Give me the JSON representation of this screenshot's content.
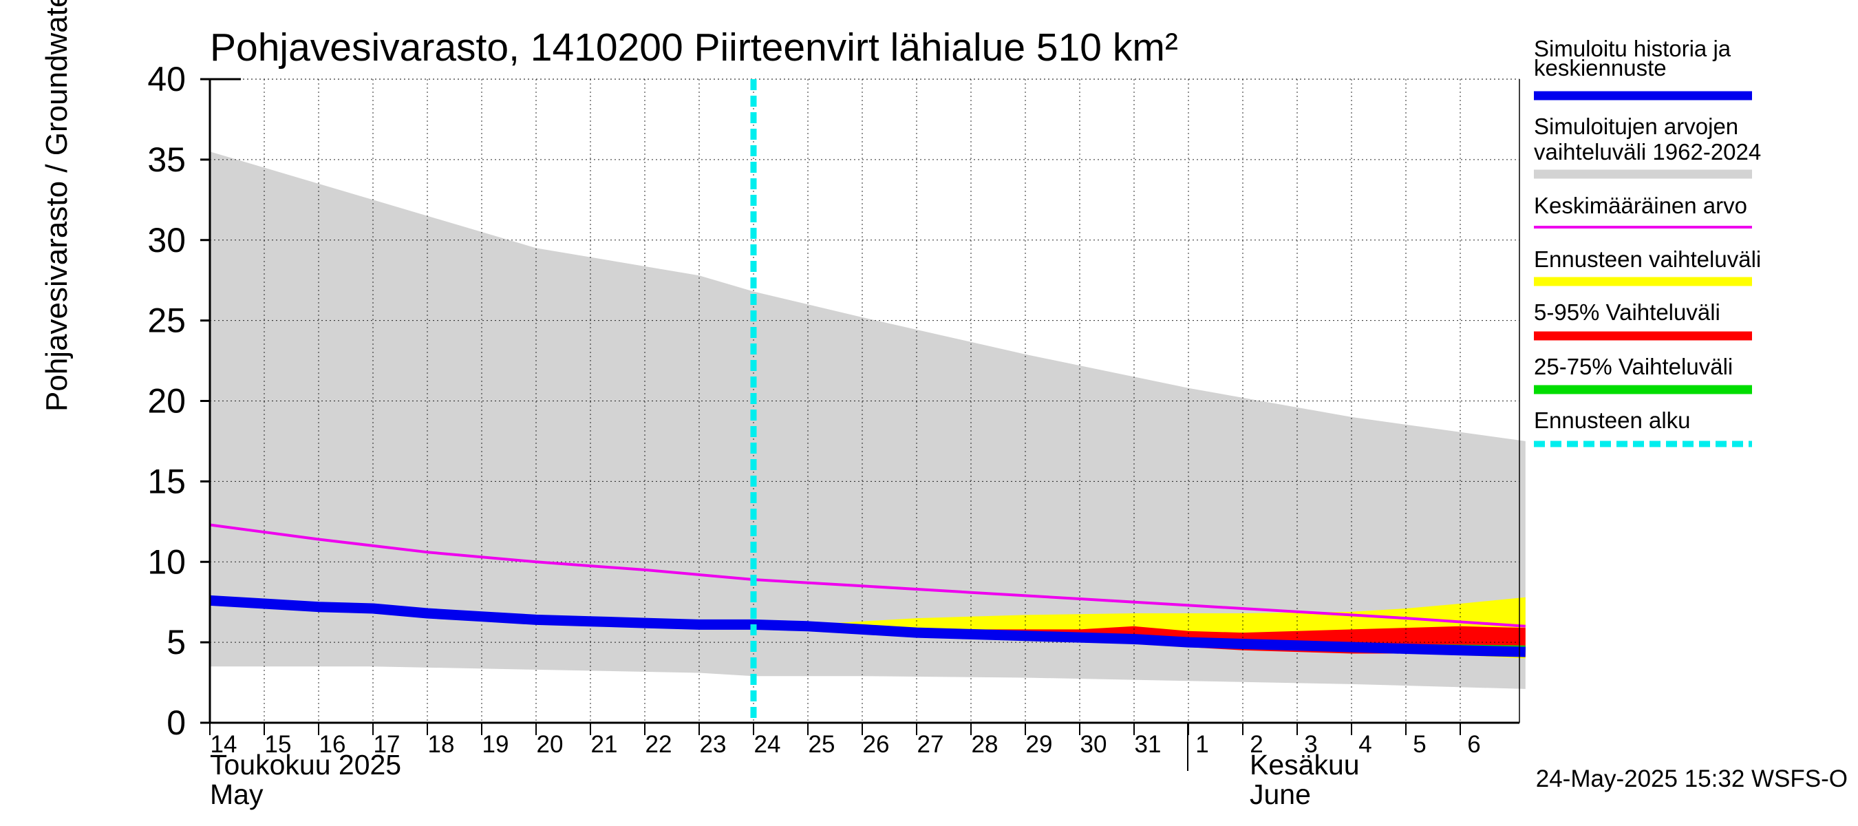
{
  "chart_data": {
    "type": "area",
    "title": "Pohjavesivarasto, 1410200 Piirteenvirt lähialue 510 km²",
    "ylabel": "Pohjavesivarasto / Groundwater storage   mm",
    "ylim": [
      0,
      40
    ],
    "yticks": [
      "0",
      "5",
      "10",
      "15",
      "20",
      "25",
      "30",
      "35",
      "40"
    ],
    "xlim": [
      0,
      24.2
    ],
    "x_ticks": [
      {
        "x": 0,
        "label": "14"
      },
      {
        "x": 1,
        "label": "15"
      },
      {
        "x": 2,
        "label": "16"
      },
      {
        "x": 3,
        "label": "17"
      },
      {
        "x": 4,
        "label": "18"
      },
      {
        "x": 5,
        "label": "19"
      },
      {
        "x": 6,
        "label": "20"
      },
      {
        "x": 7,
        "label": "21"
      },
      {
        "x": 8,
        "label": "22"
      },
      {
        "x": 9,
        "label": "23"
      },
      {
        "x": 10,
        "label": "24"
      },
      {
        "x": 11,
        "label": "25"
      },
      {
        "x": 12,
        "label": "26"
      },
      {
        "x": 13,
        "label": "27"
      },
      {
        "x": 14,
        "label": "28"
      },
      {
        "x": 15,
        "label": "29"
      },
      {
        "x": 16,
        "label": "30"
      },
      {
        "x": 17,
        "label": "31"
      },
      {
        "x": 18,
        "label": "1"
      },
      {
        "x": 19,
        "label": "2"
      },
      {
        "x": 20,
        "label": "3"
      },
      {
        "x": 21,
        "label": "4"
      },
      {
        "x": 22,
        "label": "5"
      },
      {
        "x": 23,
        "label": "6"
      }
    ],
    "month_labels": {
      "may_fi": "Toukokuu  2025",
      "may_en": "May",
      "june_fi": "Kesäkuu",
      "june_en": "June"
    },
    "month_boundary_x": 18,
    "forecast_start_x": 10,
    "series": [
      {
        "name": "Simuloitujen arvojen vaihteluväli 1962-2024",
        "kind": "band",
        "color": "#d3d3d3",
        "x": [
          0,
          3,
          6,
          9,
          10,
          12,
          15,
          18,
          21,
          24.2
        ],
        "lower": [
          3.5,
          3.5,
          3.3,
          3.1,
          2.9,
          2.9,
          2.8,
          2.6,
          2.4,
          2.1
        ],
        "upper": [
          35.5,
          32.5,
          29.5,
          27.8,
          26.8,
          25.2,
          22.9,
          20.8,
          19.0,
          17.5
        ]
      },
      {
        "name": "Ennusteen vaihteluväli",
        "kind": "band",
        "color": "#ffff00",
        "x": [
          10,
          11,
          12,
          13,
          15,
          17,
          19,
          21,
          22,
          23,
          24.2
        ],
        "lower": [
          6.0,
          5.9,
          5.7,
          5.5,
          5.2,
          4.9,
          4.6,
          4.4,
          4.3,
          4.2,
          4.0
        ],
        "upper": [
          6.1,
          6.1,
          6.3,
          6.5,
          6.7,
          6.8,
          6.8,
          6.9,
          7.1,
          7.4,
          7.8
        ]
      },
      {
        "name": "5-95% Vaihteluväli",
        "kind": "band",
        "color": "#ff0000",
        "x": [
          10,
          12,
          14,
          15,
          16,
          17,
          18,
          19,
          21,
          22,
          23,
          24.2
        ],
        "lower": [
          6.0,
          5.8,
          5.5,
          5.3,
          5.1,
          4.9,
          4.7,
          4.5,
          4.3,
          4.3,
          4.2,
          4.1
        ],
        "upper": [
          6.1,
          6.0,
          5.8,
          5.8,
          5.8,
          6.0,
          5.7,
          5.6,
          5.8,
          5.9,
          6.0,
          5.9
        ]
      },
      {
        "name": "25-75% Vaihteluväli",
        "kind": "band",
        "color": "#00dd00",
        "x": [
          10,
          12,
          14,
          16,
          18,
          20,
          22,
          24.2
        ],
        "lower": [
          6.0,
          5.8,
          5.6,
          5.3,
          5.0,
          4.8,
          4.6,
          4.4
        ],
        "upper": [
          6.1,
          5.9,
          5.7,
          5.5,
          5.2,
          5.0,
          4.9,
          4.8
        ]
      },
      {
        "name": "Keskimääräinen arvo",
        "kind": "line",
        "color": "#ee00ee",
        "x": [
          0,
          2,
          4,
          6,
          8,
          10,
          12,
          14,
          16,
          18,
          20,
          22,
          24.2
        ],
        "y": [
          12.3,
          11.4,
          10.6,
          10.0,
          9.5,
          8.9,
          8.5,
          8.1,
          7.7,
          7.3,
          6.9,
          6.5,
          6.0
        ]
      },
      {
        "name": "Simuloitu historia ja keskiennuste",
        "kind": "line",
        "color": "#0000ee",
        "x": [
          0,
          1,
          2,
          3,
          4,
          5,
          6,
          7,
          8,
          9,
          10,
          11,
          12,
          13,
          14,
          15,
          16,
          17,
          18,
          19,
          20,
          21,
          22,
          23,
          24.2
        ],
        "y": [
          7.6,
          7.4,
          7.2,
          7.1,
          6.8,
          6.6,
          6.4,
          6.3,
          6.2,
          6.1,
          6.1,
          6.0,
          5.8,
          5.6,
          5.5,
          5.4,
          5.3,
          5.2,
          5.0,
          4.9,
          4.8,
          4.7,
          4.6,
          4.5,
          4.4
        ]
      }
    ],
    "legend": {
      "placement": "right",
      "entries": [
        {
          "lines": [
            "Simuloitu historia ja",
            "keskiennuste"
          ],
          "color": "#0000ee",
          "style": "thick"
        },
        {
          "lines": [
            "Simuloitujen arvojen",
            "vaihteluväli 1962-2024"
          ],
          "color": "#d3d3d3",
          "style": "thick"
        },
        {
          "lines": [
            "Keskimääräinen arvo"
          ],
          "color": "#ee00ee",
          "style": "thin"
        },
        {
          "lines": [
            "Ennusteen vaihteluväli"
          ],
          "color": "#ffff00",
          "style": "thick"
        },
        {
          "lines": [
            "5-95% Vaihteluväli"
          ],
          "color": "#ff0000",
          "style": "thick"
        },
        {
          "lines": [
            "25-75% Vaihteluväli"
          ],
          "color": "#00dd00",
          "style": "thick"
        },
        {
          "lines": [
            "Ennusteen alku"
          ],
          "color": "#00eeee",
          "style": "dashed"
        }
      ]
    },
    "grid": true,
    "forecast_line_color": "#00eeee"
  },
  "footer": "24-May-2025 15:32 WSFS-O"
}
